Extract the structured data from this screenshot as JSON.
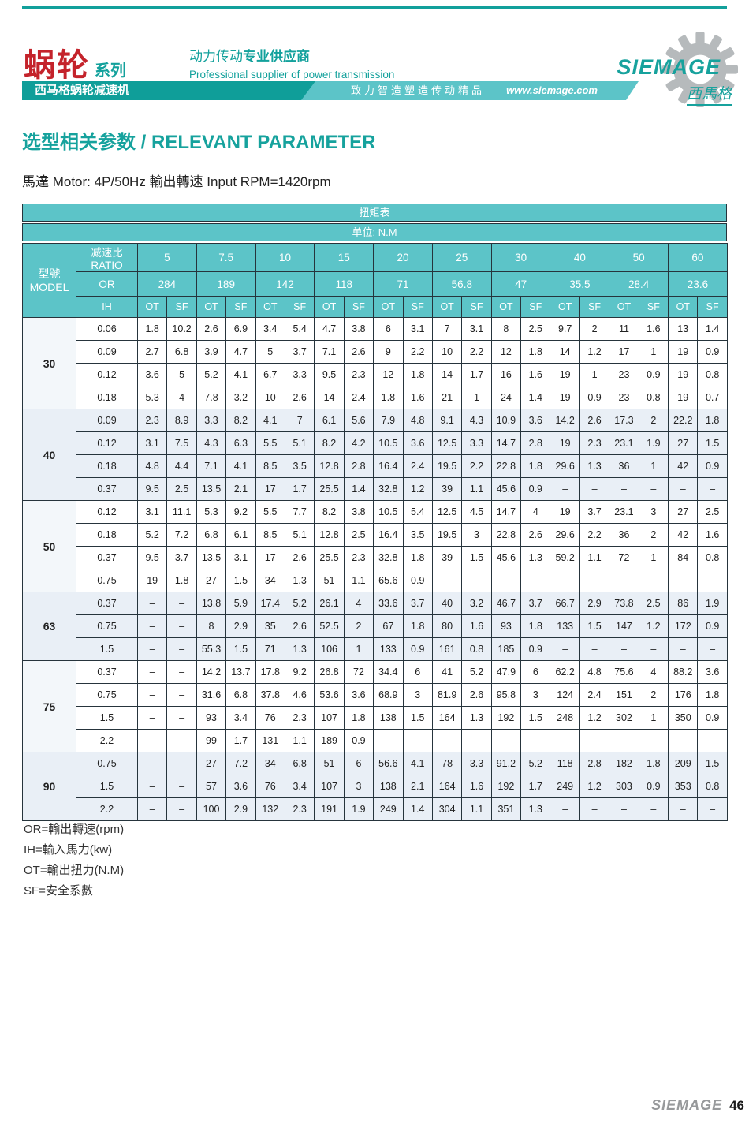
{
  "header": {
    "series_title_zh": "蜗轮",
    "series_suffix": "系列",
    "slogan_zh_regular": "动力传动",
    "slogan_zh_bold": "专业供应商",
    "slogan_en": "Professional supplier of power transmission",
    "band_left": "西马格蜗轮减速机",
    "band_middle": "致力智造塑造传动精品",
    "band_url": "www.siemage.com",
    "brand": "SIEMAGE",
    "brand_zh": "西馬格",
    "accent_teal": "#16a29d",
    "accent_red": "#c4232b"
  },
  "section": {
    "title": "选型相关参数 / RELEVANT PARAMETER",
    "subtitle": "馬達 Motor: 4P/50Hz  輸出轉速 Input RPM=1420rpm"
  },
  "table": {
    "title": "扭矩表",
    "unit": "单位: N.M",
    "model_header_zh": "型號",
    "model_header_en": "MODEL",
    "ratio_label": "减速比RATIO",
    "or_label": "OR",
    "ih_label": "IH",
    "ot_label": "OT",
    "sf_label": "SF",
    "ratios": [
      "5",
      "7.5",
      "10",
      "15",
      "20",
      "25",
      "30",
      "40",
      "50",
      "60"
    ],
    "or_values": [
      "284",
      "189",
      "142",
      "118",
      "71",
      "56.8",
      "47",
      "35.5",
      "28.4",
      "23.6"
    ],
    "groups": [
      {
        "model": "30",
        "rows": [
          {
            "ih": "0.06",
            "values": [
              "1.8",
              "10.2",
              "2.6",
              "6.9",
              "3.4",
              "5.4",
              "4.7",
              "3.8",
              "6",
              "3.1",
              "7",
              "3.1",
              "8",
              "2.5",
              "9.7",
              "2",
              "11",
              "1.6",
              "13",
              "1.4"
            ]
          },
          {
            "ih": "0.09",
            "values": [
              "2.7",
              "6.8",
              "3.9",
              "4.7",
              "5",
              "3.7",
              "7.1",
              "2.6",
              "9",
              "2.2",
              "10",
              "2.2",
              "12",
              "1.8",
              "14",
              "1.2",
              "17",
              "1",
              "19",
              "0.9"
            ]
          },
          {
            "ih": "0.12",
            "values": [
              "3.6",
              "5",
              "5.2",
              "4.1",
              "6.7",
              "3.3",
              "9.5",
              "2.3",
              "12",
              "1.8",
              "14",
              "1.7",
              "16",
              "1.6",
              "19",
              "1",
              "23",
              "0.9",
              "19",
              "0.8"
            ]
          },
          {
            "ih": "0.18",
            "values": [
              "5.3",
              "4",
              "7.8",
              "3.2",
              "10",
              "2.6",
              "14",
              "2.4",
              "1.8",
              "1.6",
              "21",
              "1",
              "24",
              "1.4",
              "19",
              "0.9",
              "23",
              "0.8",
              "19",
              "0.7"
            ]
          }
        ]
      },
      {
        "model": "40",
        "rows": [
          {
            "ih": "0.09",
            "values": [
              "2.3",
              "8.9",
              "3.3",
              "8.2",
              "4.1",
              "7",
              "6.1",
              "5.6",
              "7.9",
              "4.8",
              "9.1",
              "4.3",
              "10.9",
              "3.6",
              "14.2",
              "2.6",
              "17.3",
              "2",
              "22.2",
              "1.8"
            ]
          },
          {
            "ih": "0.12",
            "values": [
              "3.1",
              "7.5",
              "4.3",
              "6.3",
              "5.5",
              "5.1",
              "8.2",
              "4.2",
              "10.5",
              "3.6",
              "12.5",
              "3.3",
              "14.7",
              "2.8",
              "19",
              "2.3",
              "23.1",
              "1.9",
              "27",
              "1.5"
            ]
          },
          {
            "ih": "0.18",
            "values": [
              "4.8",
              "4.4",
              "7.1",
              "4.1",
              "8.5",
              "3.5",
              "12.8",
              "2.8",
              "16.4",
              "2.4",
              "19.5",
              "2.2",
              "22.8",
              "1.8",
              "29.6",
              "1.3",
              "36",
              "1",
              "42",
              "0.9"
            ]
          },
          {
            "ih": "0.37",
            "values": [
              "9.5",
              "2.5",
              "13.5",
              "2.1",
              "17",
              "1.7",
              "25.5",
              "1.4",
              "32.8",
              "1.2",
              "39",
              "1.1",
              "45.6",
              "0.9",
              "–",
              "–",
              "–",
              "–",
              "–",
              "–"
            ]
          }
        ]
      },
      {
        "model": "50",
        "rows": [
          {
            "ih": "0.12",
            "values": [
              "3.1",
              "11.1",
              "5.3",
              "9.2",
              "5.5",
              "7.7",
              "8.2",
              "3.8",
              "10.5",
              "5.4",
              "12.5",
              "4.5",
              "14.7",
              "4",
              "19",
              "3.7",
              "23.1",
              "3",
              "27",
              "2.5"
            ]
          },
          {
            "ih": "0.18",
            "values": [
              "5.2",
              "7.2",
              "6.8",
              "6.1",
              "8.5",
              "5.1",
              "12.8",
              "2.5",
              "16.4",
              "3.5",
              "19.5",
              "3",
              "22.8",
              "2.6",
              "29.6",
              "2.2",
              "36",
              "2",
              "42",
              "1.6"
            ]
          },
          {
            "ih": "0.37",
            "values": [
              "9.5",
              "3.7",
              "13.5",
              "3.1",
              "17",
              "2.6",
              "25.5",
              "2.3",
              "32.8",
              "1.8",
              "39",
              "1.5",
              "45.6",
              "1.3",
              "59.2",
              "1.1",
              "72",
              "1",
              "84",
              "0.8"
            ]
          },
          {
            "ih": "0.75",
            "values": [
              "19",
              "1.8",
              "27",
              "1.5",
              "34",
              "1.3",
              "51",
              "1.1",
              "65.6",
              "0.9",
              "–",
              "–",
              "–",
              "–",
              "–",
              "–",
              "–",
              "–",
              "–",
              "–"
            ]
          }
        ]
      },
      {
        "model": "63",
        "rows": [
          {
            "ih": "0.37",
            "values": [
              "–",
              "–",
              "13.8",
              "5.9",
              "17.4",
              "5.2",
              "26.1",
              "4",
              "33.6",
              "3.7",
              "40",
              "3.2",
              "46.7",
              "3.7",
              "66.7",
              "2.9",
              "73.8",
              "2.5",
              "86",
              "1.9"
            ]
          },
          {
            "ih": "0.75",
            "values": [
              "–",
              "–",
              "8",
              "2.9",
              "35",
              "2.6",
              "52.5",
              "2",
              "67",
              "1.8",
              "80",
              "1.6",
              "93",
              "1.8",
              "133",
              "1.5",
              "147",
              "1.2",
              "172",
              "0.9"
            ]
          },
          {
            "ih": "1.5",
            "values": [
              "–",
              "–",
              "55.3",
              "1.5",
              "71",
              "1.3",
              "106",
              "1",
              "133",
              "0.9",
              "161",
              "0.8",
              "185",
              "0.9",
              "–",
              "–",
              "–",
              "–",
              "–",
              "–"
            ]
          }
        ]
      },
      {
        "model": "75",
        "rows": [
          {
            "ih": "0.37",
            "values": [
              "–",
              "–",
              "14.2",
              "13.7",
              "17.8",
              "9.2",
              "26.8",
              "72",
              "34.4",
              "6",
              "41",
              "5.2",
              "47.9",
              "6",
              "62.2",
              "4.8",
              "75.6",
              "4",
              "88.2",
              "3.6"
            ]
          },
          {
            "ih": "0.75",
            "values": [
              "–",
              "–",
              "31.6",
              "6.8",
              "37.8",
              "4.6",
              "53.6",
              "3.6",
              "68.9",
              "3",
              "81.9",
              "2.6",
              "95.8",
              "3",
              "124",
              "2.4",
              "151",
              "2",
              "176",
              "1.8"
            ]
          },
          {
            "ih": "1.5",
            "values": [
              "–",
              "–",
              "93",
              "3.4",
              "76",
              "2.3",
              "107",
              "1.8",
              "138",
              "1.5",
              "164",
              "1.3",
              "192",
              "1.5",
              "248",
              "1.2",
              "302",
              "1",
              "350",
              "0.9"
            ]
          },
          {
            "ih": "2.2",
            "values": [
              "–",
              "–",
              "99",
              "1.7",
              "131",
              "1.1",
              "189",
              "0.9",
              "–",
              "–",
              "–",
              "–",
              "–",
              "–",
              "–",
              "–",
              "–",
              "–",
              "–",
              "–"
            ]
          }
        ]
      },
      {
        "model": "90",
        "rows": [
          {
            "ih": "0.75",
            "values": [
              "–",
              "–",
              "27",
              "7.2",
              "34",
              "6.8",
              "51",
              "6",
              "56.6",
              "4.1",
              "78",
              "3.3",
              "91.2",
              "5.2",
              "118",
              "2.8",
              "182",
              "1.8",
              "209",
              "1.5"
            ]
          },
          {
            "ih": "1.5",
            "values": [
              "–",
              "–",
              "57",
              "3.6",
              "76",
              "3.4",
              "107",
              "3",
              "138",
              "2.1",
              "164",
              "1.6",
              "192",
              "1.7",
              "249",
              "1.2",
              "303",
              "0.9",
              "353",
              "0.8"
            ]
          },
          {
            "ih": "2.2",
            "values": [
              "–",
              "–",
              "100",
              "2.9",
              "132",
              "2.3",
              "191",
              "1.9",
              "249",
              "1.4",
              "304",
              "1.1",
              "351",
              "1.3",
              "–",
              "–",
              "–",
              "–",
              "–",
              "–"
            ]
          }
        ]
      }
    ]
  },
  "legend": [
    "OR=輸出轉速(rpm)",
    "IH=輸入馬力(kw)",
    "OT=輸出扭力(N.M)",
    "SF=安全系數"
  ],
  "footer": {
    "brand": "SIEMAGE",
    "page": "46"
  }
}
